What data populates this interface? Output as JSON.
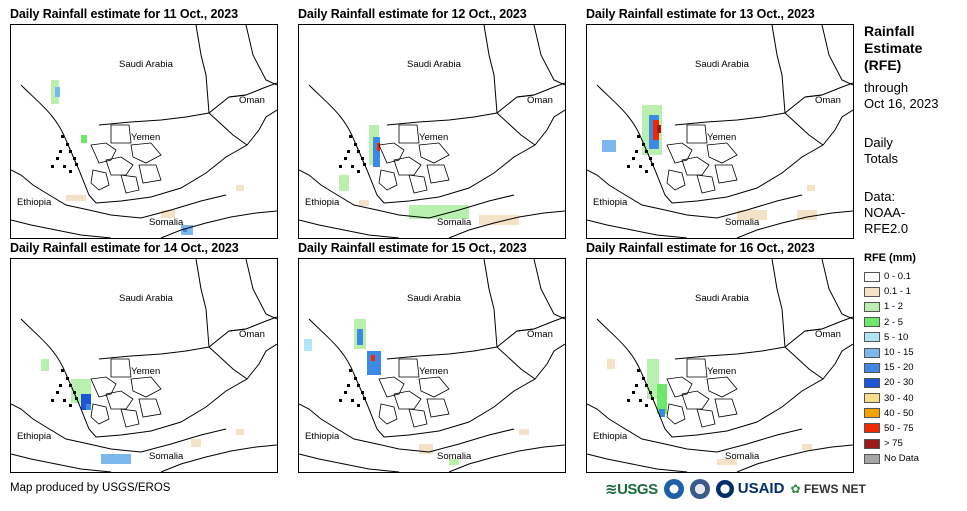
{
  "panels": [
    {
      "title": "Daily Rainfall estimate for 11 Oct., 2023"
    },
    {
      "title": "Daily Rainfall estimate for 12 Oct., 2023"
    },
    {
      "title": "Daily Rainfall estimate for 13 Oct., 2023"
    },
    {
      "title": "Daily Rainfall estimate for 14 Oct., 2023"
    },
    {
      "title": "Daily Rainfall estimate for 15 Oct., 2023"
    },
    {
      "title": "Daily Rainfall estimate for 16 Oct., 2023"
    }
  ],
  "map_labels": {
    "saudi_arabia": "Saudi Arabia",
    "oman": "Oman",
    "yemen": "Yemen",
    "ethiopia": "Ethiopia",
    "somalia": "Somalia"
  },
  "sidebar": {
    "title_line1": "Rainfall",
    "title_line2": "Estimate",
    "title_line3": "(RFE)",
    "through_label": "through",
    "through_date": "Oct 16, 2023",
    "totals_line1": "Daily",
    "totals_line2": "Totals",
    "data_line1": "Data:",
    "data_line2": "NOAA-",
    "data_line3": "RFE2.0"
  },
  "legend": {
    "title": "RFE (mm)",
    "items": [
      {
        "label": "0 - 0.1",
        "color": "#ffffff"
      },
      {
        "label": "0.1 - 1",
        "color": "#f3e2c7"
      },
      {
        "label": "1 - 2",
        "color": "#b9f0b0"
      },
      {
        "label": "2 - 5",
        "color": "#6ee86a"
      },
      {
        "label": "5 - 10",
        "color": "#b3e6f5"
      },
      {
        "label": "10 - 15",
        "color": "#7cb8ee"
      },
      {
        "label": "15 - 20",
        "color": "#3d8ae6"
      },
      {
        "label": "20 - 30",
        "color": "#1a55d6"
      },
      {
        "label": "30 - 40",
        "color": "#f7dc86"
      },
      {
        "label": "40 - 50",
        "color": "#f5a300"
      },
      {
        "label": "50 - 75",
        "color": "#f02a00"
      },
      {
        "label": "> 75",
        "color": "#9b1b1b"
      },
      {
        "label": "No Data",
        "color": "#a6a6a6"
      }
    ]
  },
  "footer": {
    "credit": "Map produced by USGS/EROS"
  },
  "logos": {
    "usgs": "USGS",
    "usaid": "USAID",
    "fews": "FEWS NET"
  }
}
